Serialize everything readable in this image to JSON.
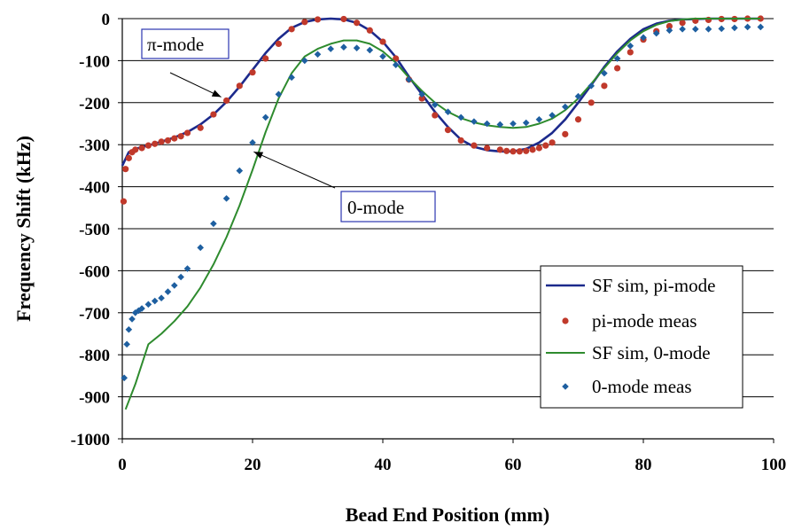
{
  "chart_data": {
    "type": "scatter",
    "xlabel": "Bead End Position (mm)",
    "ylabel": "Frequency Shift (kHz)",
    "xlim": [
      0,
      100
    ],
    "ylim": [
      -1000,
      0
    ],
    "xticks": [
      0,
      20,
      40,
      60,
      80,
      100
    ],
    "yticks": [
      0,
      -100,
      -200,
      -300,
      -400,
      -500,
      -600,
      -700,
      -800,
      -900,
      -1000
    ],
    "grid": "horizontal",
    "legend_position": "bottom-right",
    "annotations": [
      {
        "text": "π-mode",
        "points_to": [
          16,
          -195
        ]
      },
      {
        "text": "0-mode",
        "points_to": [
          21,
          -300
        ]
      }
    ],
    "series": [
      {
        "name": "SF sim, pi-mode",
        "kind": "line",
        "color": "#1c2a8c",
        "x": [
          0,
          1,
          2,
          4,
          6,
          8,
          10,
          12,
          14,
          16,
          18,
          20,
          22,
          24,
          26,
          28,
          30,
          32,
          34,
          36,
          38,
          40,
          42,
          44,
          46,
          48,
          50,
          52,
          54,
          56,
          58,
          60,
          62,
          64,
          66,
          68,
          70,
          72,
          74,
          76,
          78,
          80,
          82,
          84,
          86,
          88,
          90,
          92,
          94,
          96,
          98
        ],
        "y": [
          -350,
          -318,
          -310,
          -302,
          -293,
          -283,
          -270,
          -252,
          -228,
          -198,
          -162,
          -122,
          -82,
          -48,
          -22,
          -8,
          -2,
          0,
          -2,
          -10,
          -28,
          -55,
          -92,
          -138,
          -180,
          -222,
          -258,
          -288,
          -305,
          -313,
          -316,
          -316,
          -310,
          -295,
          -272,
          -240,
          -200,
          -158,
          -115,
          -78,
          -48,
          -25,
          -12,
          -5,
          -2,
          -1,
          0,
          0,
          0,
          0,
          0
        ]
      },
      {
        "name": "pi-mode meas",
        "kind": "markers",
        "marker": "circle",
        "color": "#c0392b",
        "x": [
          0.2,
          0.5,
          1,
          1.5,
          2,
          3,
          4,
          5,
          6,
          7,
          8,
          9,
          10,
          12,
          14,
          16,
          18,
          20,
          22,
          24,
          26,
          28,
          30,
          34,
          36,
          38,
          40,
          42,
          44,
          46,
          48,
          50,
          52,
          54,
          56,
          58,
          59,
          60,
          61,
          62,
          63,
          64,
          65,
          66,
          68,
          70,
          72,
          74,
          76,
          78,
          80,
          82,
          84,
          86,
          88,
          90,
          92,
          94,
          96,
          98
        ],
        "y": [
          -435,
          -358,
          -332,
          -318,
          -312,
          -308,
          -302,
          -298,
          -293,
          -290,
          -285,
          -280,
          -272,
          -260,
          -228,
          -195,
          -160,
          -128,
          -95,
          -60,
          -25,
          -8,
          -2,
          -1,
          -10,
          -28,
          -55,
          -95,
          -145,
          -190,
          -230,
          -265,
          -290,
          -302,
          -308,
          -312,
          -315,
          -316,
          -316,
          -315,
          -312,
          -308,
          -302,
          -295,
          -275,
          -240,
          -200,
          -160,
          -118,
          -80,
          -50,
          -30,
          -18,
          -10,
          -5,
          -3,
          -1,
          -1,
          0,
          0
        ]
      },
      {
        "name": "SF sim, 0-mode",
        "kind": "line",
        "color": "#2e8b2e",
        "x": [
          0.5,
          2,
          4,
          6,
          8,
          10,
          12,
          14,
          16,
          18,
          20,
          22,
          24,
          26,
          28,
          30,
          32,
          34,
          36,
          38,
          40,
          42,
          44,
          46,
          48,
          50,
          52,
          54,
          56,
          58,
          60,
          62,
          64,
          66,
          68,
          70,
          72,
          74,
          76,
          78,
          80,
          82,
          84,
          86,
          88,
          90,
          92,
          94,
          96,
          98
        ],
        "y": [
          -930,
          -870,
          -775,
          -750,
          -720,
          -685,
          -640,
          -585,
          -520,
          -445,
          -360,
          -270,
          -190,
          -130,
          -90,
          -72,
          -60,
          -52,
          -52,
          -60,
          -78,
          -105,
          -140,
          -172,
          -200,
          -222,
          -237,
          -247,
          -254,
          -258,
          -260,
          -258,
          -250,
          -238,
          -218,
          -190,
          -155,
          -118,
          -82,
          -52,
          -30,
          -15,
          -6,
          -2,
          0,
          0,
          0,
          0,
          0,
          0
        ]
      },
      {
        "name": "0-mode meas",
        "kind": "markers",
        "marker": "diamond",
        "color": "#1e5fa0",
        "x": [
          0.3,
          0.7,
          1,
          1.5,
          2,
          2.5,
          3,
          4,
          5,
          6,
          7,
          8,
          9,
          10,
          12,
          14,
          16,
          18,
          20,
          22,
          24,
          26,
          28,
          30,
          32,
          34,
          36,
          38,
          40,
          42,
          44,
          46,
          48,
          50,
          52,
          54,
          56,
          58,
          60,
          62,
          64,
          66,
          68,
          70,
          72,
          74,
          76,
          78,
          80,
          82,
          84,
          86,
          88,
          90,
          92,
          94,
          96,
          98
        ],
        "y": [
          -855,
          -775,
          -740,
          -715,
          -700,
          -695,
          -690,
          -680,
          -672,
          -665,
          -650,
          -635,
          -615,
          -595,
          -545,
          -488,
          -428,
          -362,
          -295,
          -235,
          -180,
          -140,
          -100,
          -85,
          -72,
          -68,
          -70,
          -75,
          -90,
          -110,
          -145,
          -180,
          -205,
          -222,
          -235,
          -245,
          -250,
          -252,
          -250,
          -248,
          -240,
          -230,
          -210,
          -185,
          -160,
          -130,
          -95,
          -65,
          -45,
          -35,
          -28,
          -25,
          -25,
          -25,
          -24,
          -22,
          -20,
          -20
        ]
      }
    ]
  }
}
